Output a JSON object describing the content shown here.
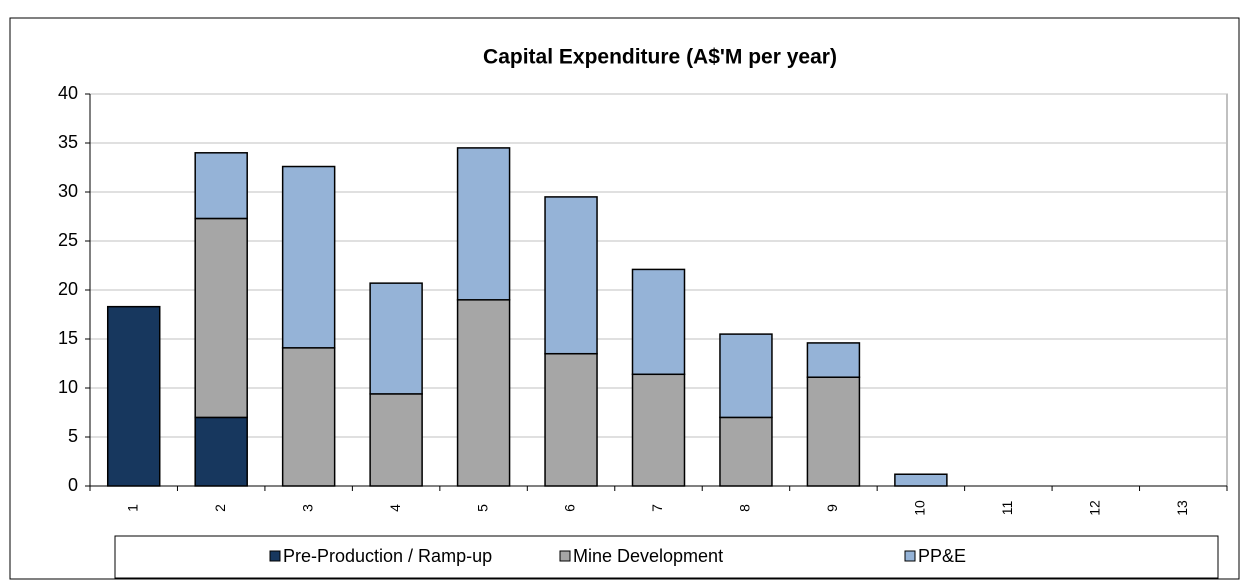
{
  "chart_data": {
    "type": "stacked_bar",
    "title": "Capital Expenditure (A$'M per year)",
    "categories": [
      "1",
      "2",
      "3",
      "4",
      "5",
      "6",
      "7",
      "8",
      "9",
      "10",
      "11",
      "12",
      "13"
    ],
    "series": [
      {
        "name": "Pre-Production / Ramp-up",
        "color": "#17375e",
        "values": [
          18.3,
          7.0,
          0,
          0,
          0,
          0,
          0,
          0,
          0,
          0,
          0,
          0,
          0
        ]
      },
      {
        "name": "Mine Development",
        "color": "#a6a6a6",
        "values": [
          0,
          20.3,
          14.1,
          9.4,
          19.0,
          13.5,
          11.4,
          7.0,
          11.1,
          0,
          0,
          0,
          0
        ]
      },
      {
        "name": "PP&E",
        "color": "#95b3d7",
        "values": [
          0,
          6.7,
          18.5,
          11.3,
          15.5,
          16.0,
          10.7,
          8.5,
          3.5,
          1.2,
          0,
          0,
          0
        ]
      }
    ],
    "ylim": [
      0,
      40
    ],
    "yticks": [
      0,
      5,
      10,
      15,
      20,
      25,
      30,
      35,
      40
    ],
    "grid": true,
    "legend": "bottom"
  }
}
